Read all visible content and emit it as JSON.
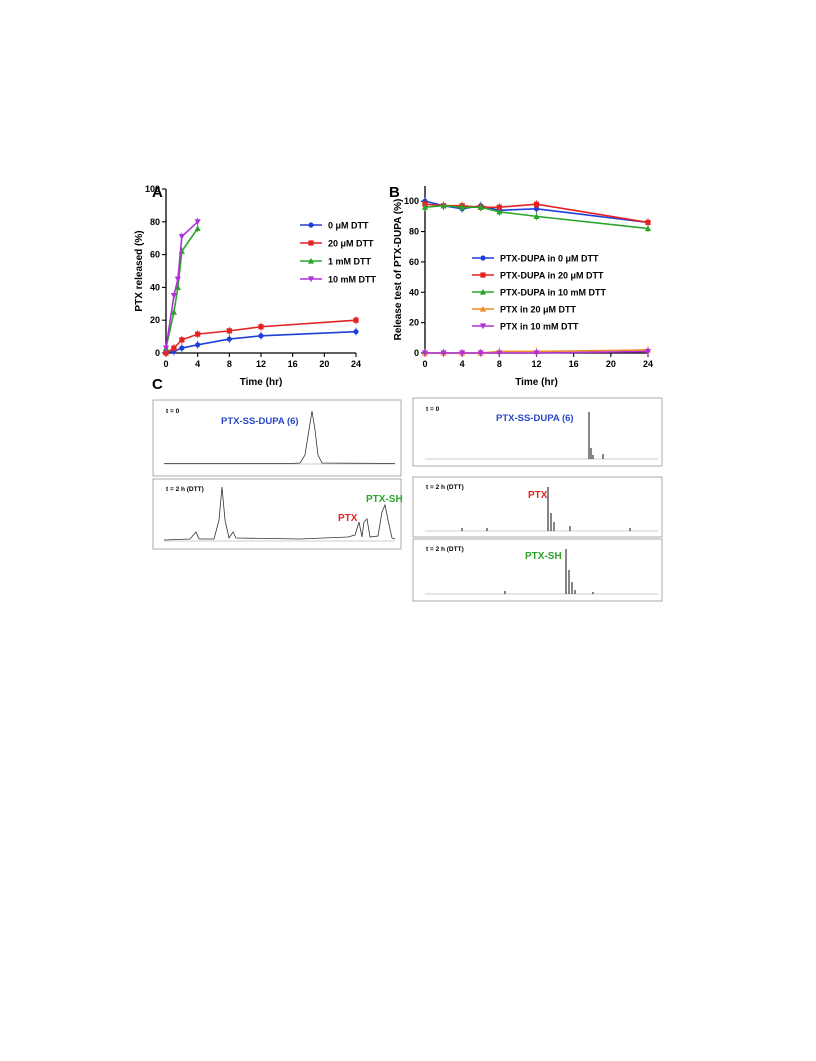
{
  "panels": {
    "A": {
      "letter": "A"
    },
    "B": {
      "letter": "B"
    },
    "C": {
      "letter": "C"
    }
  },
  "colors": {
    "blue": "#1f3fd8",
    "red": "#e42222",
    "green": "#2aa52a",
    "orange": "#f08a24",
    "purple": "#b030d8",
    "trace": "#333333"
  },
  "chart_data": [
    {
      "id": "A",
      "type": "line",
      "xlabel": "Time (hr)",
      "ylabel": "PTX released (%)",
      "xlim": [
        0,
        24
      ],
      "ylim": [
        0,
        100
      ],
      "xticks": [
        "0",
        "4",
        "8",
        "12",
        "16",
        "20",
        "24"
      ],
      "yticks": [
        "0",
        "20",
        "40",
        "60",
        "80",
        "100"
      ],
      "legend_position": "right",
      "series": [
        {
          "name": "0  μM DTT",
          "color": "#1f3fd8",
          "marker": "circle",
          "x": [
            0,
            1,
            2,
            4,
            8,
            12,
            24
          ],
          "y": [
            0,
            1,
            3,
            5,
            8.5,
            10.5,
            13
          ]
        },
        {
          "name": "20 μM DTT",
          "color": "#e42222",
          "marker": "square",
          "x": [
            0,
            1,
            2,
            4,
            8,
            12,
            24
          ],
          "y": [
            0,
            3,
            8,
            11.5,
            13.5,
            16,
            20
          ]
        },
        {
          "name": "1 mM DTT",
          "color": "#2aa52a",
          "marker": "triangle",
          "x": [
            0,
            1,
            1.5,
            2,
            4
          ],
          "y": [
            3,
            25,
            40,
            62,
            76
          ]
        },
        {
          "name": "10 mM DTT",
          "color": "#b030d8",
          "marker": "triangle-down",
          "x": [
            0,
            1,
            1.5,
            2,
            4
          ],
          "y": [
            3,
            35,
            45,
            71,
            80
          ]
        }
      ]
    },
    {
      "id": "B",
      "type": "line",
      "xlabel": "Time (hr)",
      "ylabel": "Release test of PTX-DUPA  (%)",
      "xlim": [
        0,
        24
      ],
      "ylim": [
        0,
        110
      ],
      "xticks": [
        "0",
        "4",
        "8",
        "12",
        "16",
        "20",
        "24"
      ],
      "yticks": [
        "0",
        "20",
        "40",
        "60",
        "80",
        "100"
      ],
      "legend_position": "center",
      "series": [
        {
          "name": "PTX-DUPA in  0  μM DTT",
          "color": "#1f3fd8",
          "marker": "circle",
          "x": [
            0,
            2,
            4,
            6,
            8,
            12,
            24
          ],
          "y": [
            100,
            97,
            95,
            97,
            94,
            95,
            86
          ]
        },
        {
          "name": "PTX-DUPA in  20 μM DTT",
          "color": "#e42222",
          "marker": "square",
          "x": [
            0,
            2,
            4,
            6,
            8,
            12,
            24
          ],
          "y": [
            98,
            97,
            97,
            96,
            96,
            98,
            86
          ]
        },
        {
          "name": "PTX-DUPA in 10 mM DTT",
          "color": "#2aa52a",
          "marker": "triangle",
          "x": [
            0,
            2,
            4,
            6,
            8,
            12,
            24
          ],
          "y": [
            96,
            97,
            96,
            96,
            93,
            90,
            82
          ]
        },
        {
          "name": "PTX in  20 μM DTT",
          "color": "#f08a24",
          "marker": "triangle",
          "x": [
            0,
            2,
            4,
            6,
            8,
            12,
            24
          ],
          "y": [
            0,
            0,
            0,
            0,
            1,
            1,
            2
          ]
        },
        {
          "name": "PTX in 10 mM DTT",
          "color": "#b030d8",
          "marker": "triangle-down",
          "x": [
            0,
            2,
            4,
            6,
            8,
            12,
            24
          ],
          "y": [
            0,
            0,
            0,
            0,
            0,
            0,
            1
          ]
        }
      ]
    }
  ],
  "panel_c": {
    "hplc_top": {
      "tlabel": "t = 0",
      "annotation": "PTX-SS-DUPA (6)"
    },
    "hplc_bottom": {
      "tlabel": "t = 2 h (DTT)",
      "annotation_ptx": "PTX",
      "annotation_ptxsh": "PTX-SH"
    },
    "ms_top": {
      "tlabel": "t = 0",
      "annotation": "PTX-SS-DUPA (6)"
    },
    "ms_middle": {
      "tlabel": "t = 2 h (DTT)",
      "annotation": "PTX"
    },
    "ms_bottom": {
      "tlabel": "t = 2 h (DTT)",
      "annotation": "PTX-SH"
    }
  }
}
